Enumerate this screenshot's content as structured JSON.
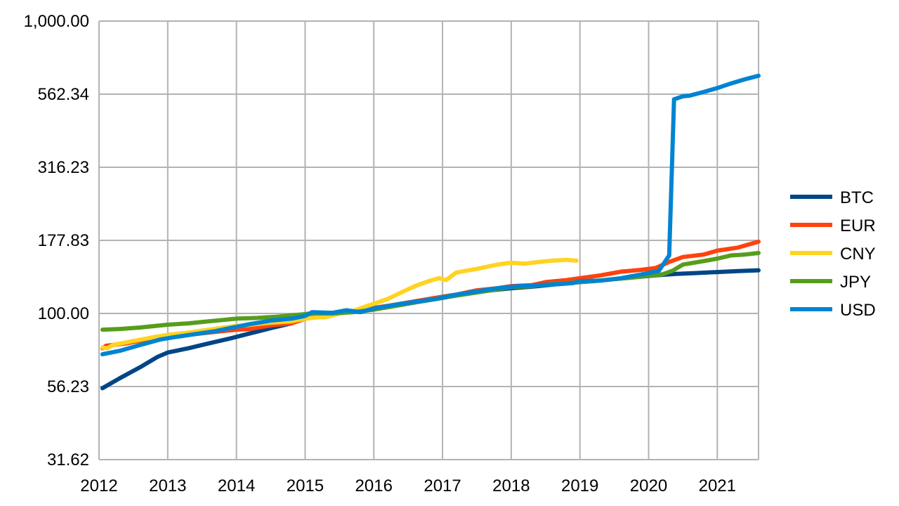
{
  "chart_data": {
    "type": "line",
    "title": "",
    "xlabel": "",
    "ylabel": "",
    "y_scale": "log",
    "xlim": [
      2012,
      2021.6
    ],
    "ylim": [
      31.62,
      1000
    ],
    "grid": true,
    "legend_position": "right",
    "x_tick_labels": [
      "2012",
      "2013",
      "2014",
      "2015",
      "2016",
      "2017",
      "2018",
      "2019",
      "2020",
      "2021"
    ],
    "y_tick_labels": [
      "1,000.00",
      "562.34",
      "316.23",
      "177.83",
      "100.00",
      "56.23",
      "31.62"
    ],
    "series": [
      {
        "name": "BTC",
        "color": "#004586",
        "points": [
          [
            2012.05,
            55.5
          ],
          [
            2012.3,
            60
          ],
          [
            2012.6,
            65.5
          ],
          [
            2012.85,
            71
          ],
          [
            2013.0,
            73.5
          ],
          [
            2013.3,
            76
          ],
          [
            2013.6,
            79
          ],
          [
            2013.9,
            82
          ],
          [
            2014.2,
            85.5
          ],
          [
            2014.5,
            89
          ],
          [
            2014.8,
            92.5
          ],
          [
            2015.0,
            96
          ],
          [
            2015.3,
            99
          ],
          [
            2015.6,
            101
          ],
          [
            2015.9,
            103
          ],
          [
            2016.2,
            106
          ],
          [
            2016.5,
            109
          ],
          [
            2016.8,
            112
          ],
          [
            2017.1,
            115
          ],
          [
            2017.4,
            117.5
          ],
          [
            2017.7,
            120
          ],
          [
            2018.0,
            122
          ],
          [
            2018.3,
            123.5
          ],
          [
            2018.6,
            125.5
          ],
          [
            2018.9,
            127.5
          ],
          [
            2019.2,
            129
          ],
          [
            2019.5,
            131
          ],
          [
            2019.8,
            133
          ],
          [
            2020.1,
            135
          ],
          [
            2020.4,
            136.5
          ],
          [
            2020.7,
            137.5
          ],
          [
            2021.0,
            138.5
          ],
          [
            2021.3,
            139.5
          ],
          [
            2021.6,
            140.5
          ]
        ]
      },
      {
        "name": "EUR",
        "color": "#ff420e",
        "points": [
          [
            2012.05,
            76
          ],
          [
            2012.1,
            77.5
          ],
          [
            2012.4,
            79
          ],
          [
            2012.7,
            81.5
          ],
          [
            2012.95,
            83.5
          ],
          [
            2013.2,
            84
          ],
          [
            2013.5,
            85.5
          ],
          [
            2013.8,
            87
          ],
          [
            2014.0,
            88
          ],
          [
            2014.2,
            88.5
          ],
          [
            2014.5,
            91
          ],
          [
            2014.8,
            92.5
          ],
          [
            2015.0,
            96
          ],
          [
            2015.3,
            99
          ],
          [
            2015.6,
            101.5
          ],
          [
            2015.8,
            102
          ],
          [
            2016.0,
            104.5
          ],
          [
            2016.3,
            107
          ],
          [
            2016.6,
            110
          ],
          [
            2016.9,
            113
          ],
          [
            2017.2,
            116
          ],
          [
            2017.5,
            120
          ],
          [
            2017.8,
            122
          ],
          [
            2018.0,
            124
          ],
          [
            2018.3,
            125
          ],
          [
            2018.5,
            128
          ],
          [
            2018.8,
            130
          ],
          [
            2019.0,
            132
          ],
          [
            2019.3,
            135
          ],
          [
            2019.6,
            139
          ],
          [
            2019.9,
            141
          ],
          [
            2020.1,
            143
          ],
          [
            2020.3,
            150
          ],
          [
            2020.5,
            156
          ],
          [
            2020.8,
            159
          ],
          [
            2021.0,
            164
          ],
          [
            2021.3,
            168
          ],
          [
            2021.6,
            176
          ]
        ]
      },
      {
        "name": "CNY",
        "color": "#ffd320",
        "points": [
          [
            2012.05,
            76.5
          ],
          [
            2012.12,
            76
          ],
          [
            2012.2,
            78
          ],
          [
            2012.5,
            80.5
          ],
          [
            2012.8,
            83
          ],
          [
            2013.0,
            84.5
          ],
          [
            2013.3,
            86
          ],
          [
            2013.6,
            88
          ],
          [
            2013.9,
            90
          ],
          [
            2014.2,
            91.5
          ],
          [
            2014.5,
            93
          ],
          [
            2014.8,
            94
          ],
          [
            2015.0,
            96
          ],
          [
            2015.2,
            97
          ],
          [
            2015.3,
            97
          ],
          [
            2015.5,
            100
          ],
          [
            2015.7,
            102
          ],
          [
            2015.9,
            106
          ],
          [
            2016.2,
            112
          ],
          [
            2016.4,
            118
          ],
          [
            2016.6,
            124
          ],
          [
            2016.8,
            129
          ],
          [
            2016.95,
            132
          ],
          [
            2017.05,
            130
          ],
          [
            2017.2,
            138
          ],
          [
            2017.5,
            142
          ],
          [
            2017.8,
            147
          ],
          [
            2018.0,
            149
          ],
          [
            2018.2,
            148
          ],
          [
            2018.4,
            150
          ],
          [
            2018.6,
            151.5
          ],
          [
            2018.8,
            152.5
          ],
          [
            2018.95,
            151.5
          ]
        ]
      },
      {
        "name": "JPY",
        "color": "#579d1c",
        "points": [
          [
            2012.05,
            88
          ],
          [
            2012.3,
            88.5
          ],
          [
            2012.6,
            89.5
          ],
          [
            2012.8,
            90.5
          ],
          [
            2013.0,
            91.5
          ],
          [
            2013.3,
            92.5
          ],
          [
            2013.5,
            93.5
          ],
          [
            2013.8,
            95
          ],
          [
            2014.0,
            96
          ],
          [
            2014.3,
            96.5
          ],
          [
            2014.6,
            97.5
          ],
          [
            2014.9,
            99
          ],
          [
            2015.1,
            100
          ],
          [
            2015.4,
            100
          ],
          [
            2015.7,
            101
          ],
          [
            2016.0,
            103
          ],
          [
            2016.3,
            106
          ],
          [
            2016.6,
            109
          ],
          [
            2016.9,
            112
          ],
          [
            2017.2,
            115
          ],
          [
            2017.5,
            118
          ],
          [
            2017.8,
            121
          ],
          [
            2018.0,
            123
          ],
          [
            2018.3,
            124
          ],
          [
            2018.6,
            126
          ],
          [
            2018.9,
            127.5
          ],
          [
            2019.2,
            129
          ],
          [
            2019.5,
            131
          ],
          [
            2019.8,
            133
          ],
          [
            2020.0,
            134.5
          ],
          [
            2020.2,
            136
          ],
          [
            2020.35,
            140
          ],
          [
            2020.5,
            147
          ],
          [
            2020.8,
            151
          ],
          [
            2021.0,
            154
          ],
          [
            2021.2,
            158
          ],
          [
            2021.4,
            159
          ],
          [
            2021.6,
            161
          ]
        ]
      },
      {
        "name": "USD",
        "color": "#0084d1",
        "points": [
          [
            2012.05,
            72.5
          ],
          [
            2012.3,
            74.5
          ],
          [
            2012.6,
            78
          ],
          [
            2012.9,
            81.5
          ],
          [
            2013.1,
            83
          ],
          [
            2013.4,
            85
          ],
          [
            2013.7,
            87
          ],
          [
            2013.9,
            89
          ],
          [
            2014.2,
            92
          ],
          [
            2014.5,
            94.5
          ],
          [
            2014.8,
            96
          ],
          [
            2015.0,
            98
          ],
          [
            2015.1,
            101
          ],
          [
            2015.4,
            100.5
          ],
          [
            2015.6,
            102.5
          ],
          [
            2015.8,
            101
          ],
          [
            2016.0,
            104
          ],
          [
            2016.3,
            107
          ],
          [
            2016.6,
            109.5
          ],
          [
            2016.9,
            112
          ],
          [
            2017.2,
            116
          ],
          [
            2017.5,
            119
          ],
          [
            2017.8,
            122
          ],
          [
            2018.1,
            124
          ],
          [
            2018.4,
            125
          ],
          [
            2018.7,
            126
          ],
          [
            2018.9,
            127
          ],
          [
            2019.0,
            129
          ],
          [
            2019.3,
            129.5
          ],
          [
            2019.6,
            132
          ],
          [
            2019.9,
            136
          ],
          [
            2020.1,
            139
          ],
          [
            2020.15,
            140
          ],
          [
            2020.3,
            158
          ],
          [
            2020.37,
            540
          ],
          [
            2020.5,
            553
          ],
          [
            2020.6,
            556
          ],
          [
            2020.8,
            572
          ],
          [
            2021.0,
            590
          ],
          [
            2021.2,
            612
          ],
          [
            2021.4,
            632
          ],
          [
            2021.6,
            650
          ]
        ]
      }
    ]
  }
}
